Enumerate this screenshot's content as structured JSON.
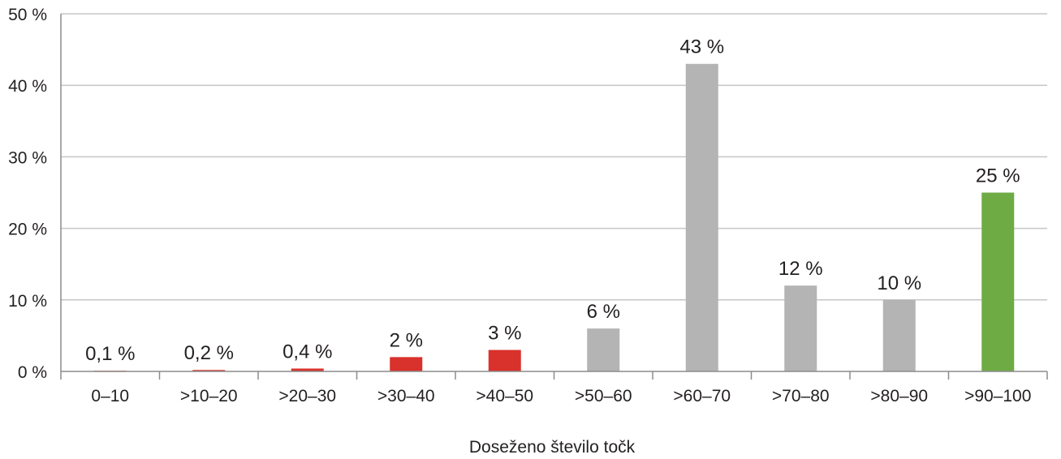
{
  "chart_data": {
    "type": "bar",
    "title": "",
    "xlabel": "Doseženo število točk",
    "ylabel": "",
    "categories": [
      "0–10",
      ">10–20",
      ">20–30",
      ">30–40",
      ">40–50",
      ">50–60",
      ">60–70",
      ">70–80",
      ">80–90",
      ">90–100"
    ],
    "values": [
      0.1,
      0.2,
      0.4,
      2,
      3,
      6,
      43,
      12,
      10,
      25
    ],
    "value_labels": [
      "0,1 %",
      "0,2 %",
      "0,4 %",
      "2 %",
      "3 %",
      "6 %",
      "43 %",
      "12 %",
      "10 %",
      "25 %"
    ],
    "ylim": [
      0,
      50
    ],
    "yticks": [
      0,
      10,
      20,
      30,
      40,
      50
    ],
    "ytick_labels": [
      "0 %",
      "10 %",
      "20 %",
      "30 %",
      "40 %",
      "50 %"
    ],
    "grid": true,
    "legend": "none",
    "colors": {
      "bars": [
        "#d9312b",
        "#d9312b",
        "#d9312b",
        "#d9312b",
        "#d9312b",
        "#b3b4b3",
        "#b3b4b3",
        "#b3b4b3",
        "#b3b4b3",
        "#6eab44"
      ],
      "grid": "#c6c6c6",
      "axis": "#8c8c8c",
      "text": "#231f20"
    }
  }
}
